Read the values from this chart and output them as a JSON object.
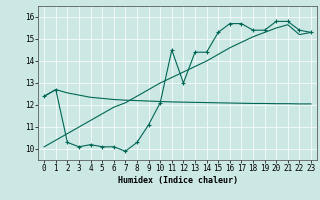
{
  "xlabel": "Humidex (Indice chaleur)",
  "bg_color": "#cce8e4",
  "line_color": "#006655",
  "grid_color": "#ffffff",
  "xlim": [
    -0.5,
    23.5
  ],
  "ylim": [
    9.5,
    16.5
  ],
  "xticks": [
    0,
    1,
    2,
    3,
    4,
    5,
    6,
    7,
    8,
    9,
    10,
    11,
    12,
    13,
    14,
    15,
    16,
    17,
    18,
    19,
    20,
    21,
    22,
    23
  ],
  "yticks": [
    10,
    11,
    12,
    13,
    14,
    15,
    16
  ],
  "line1_x": [
    0,
    1,
    2,
    3,
    4,
    5,
    6,
    7,
    8,
    9,
    10,
    11,
    12,
    13,
    14,
    15,
    16,
    17,
    18,
    19,
    20,
    21,
    22,
    23
  ],
  "line1_y": [
    12.4,
    12.7,
    12.55,
    12.45,
    12.35,
    12.3,
    12.25,
    12.22,
    12.2,
    12.18,
    12.16,
    12.14,
    12.13,
    12.12,
    12.11,
    12.1,
    12.09,
    12.08,
    12.07,
    12.07,
    12.06,
    12.06,
    12.05,
    12.05
  ],
  "line2_x": [
    0,
    1,
    2,
    3,
    4,
    5,
    6,
    7,
    8,
    9,
    10,
    11,
    12,
    13,
    14,
    15,
    16,
    17,
    18,
    19,
    20,
    21,
    22,
    23
  ],
  "line2_y": [
    12.4,
    12.7,
    10.3,
    10.1,
    10.2,
    10.1,
    10.1,
    9.9,
    10.3,
    11.1,
    12.1,
    14.5,
    13.0,
    14.4,
    14.4,
    15.3,
    15.7,
    15.7,
    15.4,
    15.4,
    15.8,
    15.8,
    15.4,
    15.3
  ],
  "line3_x": [
    0,
    1,
    2,
    3,
    4,
    5,
    6,
    7,
    8,
    9,
    10,
    11,
    12,
    13,
    14,
    15,
    16,
    17,
    18,
    19,
    20,
    21,
    22,
    23
  ],
  "line3_y": [
    10.1,
    10.4,
    10.7,
    11.0,
    11.3,
    11.6,
    11.9,
    12.1,
    12.4,
    12.7,
    13.0,
    13.25,
    13.5,
    13.75,
    14.0,
    14.3,
    14.6,
    14.85,
    15.1,
    15.3,
    15.5,
    15.65,
    15.2,
    15.3
  ],
  "xlabel_fontsize": 6.0,
  "tick_fontsize": 5.5
}
